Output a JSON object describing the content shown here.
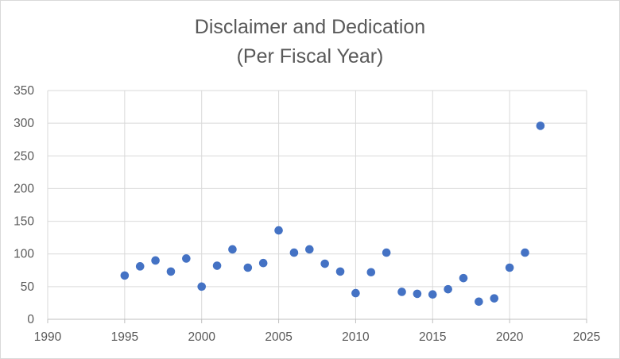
{
  "chart_data": {
    "type": "scatter",
    "title_lines": [
      "Disclaimer and Dedication",
      "(Per Fiscal Year)"
    ],
    "xlabel": "",
    "ylabel": "",
    "xlim": [
      1990,
      2025
    ],
    "ylim": [
      0,
      350
    ],
    "xticks": [
      1990,
      1995,
      2000,
      2005,
      2010,
      2015,
      2020,
      2025
    ],
    "yticks": [
      0,
      50,
      100,
      150,
      200,
      250,
      300,
      350
    ],
    "grid": true,
    "legend": "none",
    "marker_color": "#4472C4",
    "points": [
      {
        "x": 1995,
        "y": 67
      },
      {
        "x": 1996,
        "y": 81
      },
      {
        "x": 1997,
        "y": 90
      },
      {
        "x": 1998,
        "y": 73
      },
      {
        "x": 1999,
        "y": 93
      },
      {
        "x": 2000,
        "y": 50
      },
      {
        "x": 2001,
        "y": 82
      },
      {
        "x": 2002,
        "y": 107
      },
      {
        "x": 2003,
        "y": 79
      },
      {
        "x": 2004,
        "y": 86
      },
      {
        "x": 2005,
        "y": 136
      },
      {
        "x": 2006,
        "y": 102
      },
      {
        "x": 2007,
        "y": 107
      },
      {
        "x": 2008,
        "y": 85
      },
      {
        "x": 2009,
        "y": 73
      },
      {
        "x": 2010,
        "y": 40
      },
      {
        "x": 2011,
        "y": 72
      },
      {
        "x": 2012,
        "y": 102
      },
      {
        "x": 2013,
        "y": 42
      },
      {
        "x": 2014,
        "y": 39
      },
      {
        "x": 2015,
        "y": 38
      },
      {
        "x": 2016,
        "y": 46
      },
      {
        "x": 2017,
        "y": 63
      },
      {
        "x": 2018,
        "y": 27
      },
      {
        "x": 2019,
        "y": 32
      },
      {
        "x": 2020,
        "y": 79
      },
      {
        "x": 2021,
        "y": 102
      },
      {
        "x": 2022,
        "y": 296
      }
    ]
  }
}
